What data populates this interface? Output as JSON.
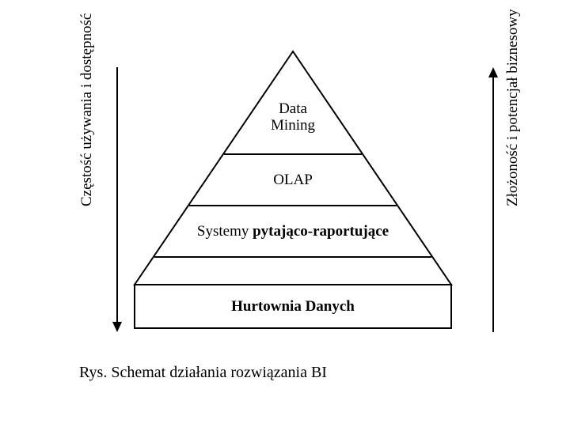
{
  "pyramid": {
    "type": "pyramid-diagram",
    "layers": [
      {
        "label_lines": [
          "Data",
          "Mining"
        ],
        "fontsize": 19,
        "fontweight": "normal"
      },
      {
        "label_lines": [
          "OLAP"
        ],
        "fontsize": 19,
        "fontweight": "normal"
      },
      {
        "label_lines_html": "Systemy <b>pytająco-raportujące</b>",
        "fontsize": 19
      },
      {
        "label_lines_html": "<b>Hurtownia Danych</b>",
        "fontsize": 19
      }
    ],
    "stroke_color": "#000000",
    "stroke_width": 2,
    "fill_color": "#ffffff",
    "background_color": "#ffffff"
  },
  "left_axis": {
    "label": "Częstość używania i dostępność",
    "direction": "down",
    "fontsize": 19,
    "stroke_color": "#000000",
    "stroke_width": 2
  },
  "right_axis": {
    "label": "Złożoność i potencjał biznesowy",
    "direction": "up",
    "fontsize": 19,
    "stroke_color": "#000000",
    "stroke_width": 2
  },
  "caption": {
    "text": "Rys. Schemat działania rozwiązania BI",
    "fontsize": 20
  }
}
